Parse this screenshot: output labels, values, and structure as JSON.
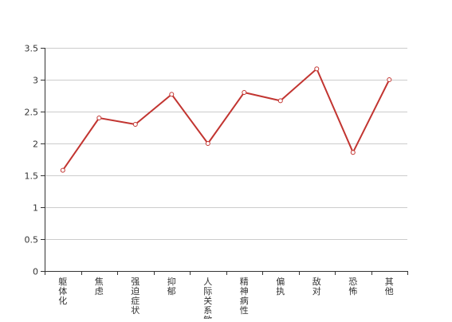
{
  "chart_data": {
    "type": "line",
    "categories": [
      "躯体化",
      "焦虑",
      "强迫症状",
      "抑郁",
      "人际关系敏感",
      "精神病性",
      "偏执",
      "敌对",
      "恐怖",
      "其他"
    ],
    "series": [
      {
        "values": [
          1.58,
          2.4,
          2.3,
          2.77,
          2.0,
          2.8,
          2.67,
          3.17,
          1.86,
          3.0
        ]
      }
    ],
    "y_ticks": [
      "0",
      "0.5",
      "1",
      "1.5",
      "2",
      "2.5",
      "3",
      "3.5"
    ],
    "ylim": [
      0,
      3.5
    ],
    "grid": "horizontal",
    "colors": {
      "line": "#c23531",
      "grid": "#cccccc",
      "axis": "#333333"
    }
  }
}
